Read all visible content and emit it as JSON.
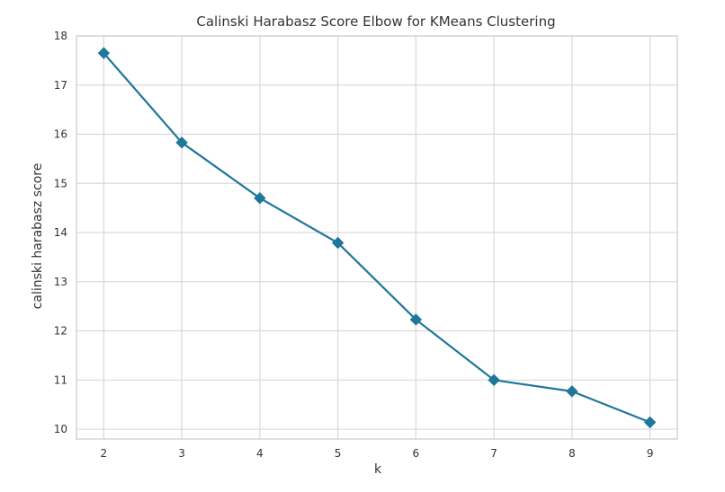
{
  "chart_data": {
    "type": "line",
    "title": "Calinski Harabasz Score Elbow for KMeans Clustering",
    "xlabel": "k",
    "ylabel": "calinski harabasz score",
    "x": [
      2,
      3,
      4,
      5,
      6,
      7,
      8,
      9
    ],
    "series": [
      {
        "values": [
          17.65,
          15.83,
          14.7,
          13.79,
          12.23,
          11.0,
          10.77,
          10.14
        ]
      }
    ],
    "xticks": [
      "2",
      "3",
      "4",
      "5",
      "6",
      "7",
      "8",
      "9"
    ],
    "yticks": [
      "10",
      "11",
      "12",
      "13",
      "14",
      "15",
      "16",
      "17",
      "18"
    ],
    "xlim": [
      1.65,
      9.35
    ],
    "ylim": [
      9.8,
      18.0
    ],
    "grid": true,
    "line_color": "#1f7799",
    "marker": "diamond"
  }
}
